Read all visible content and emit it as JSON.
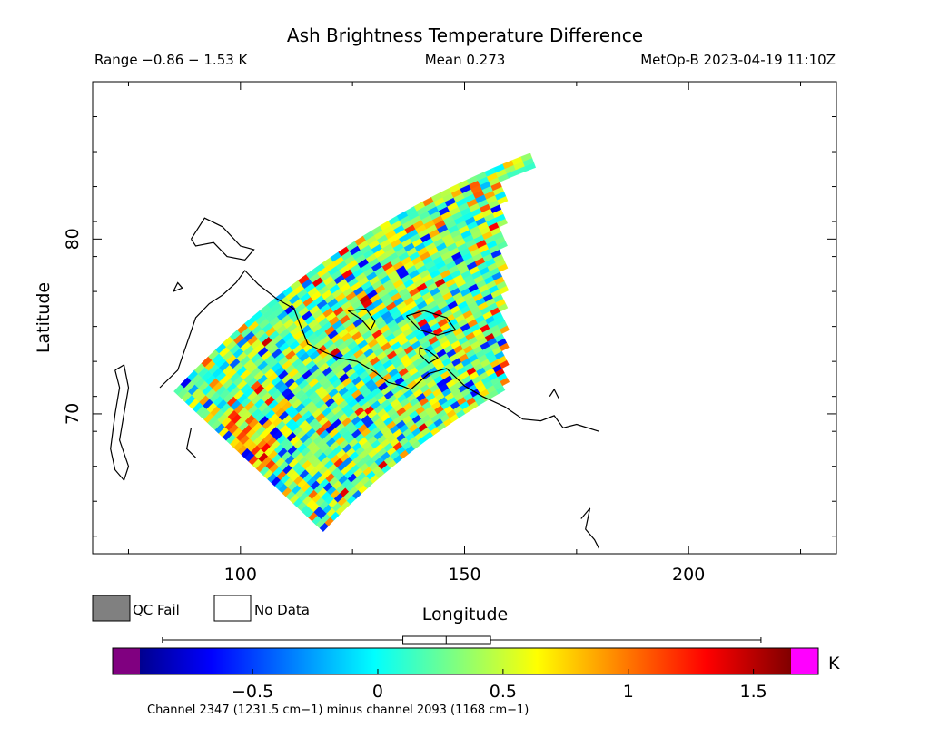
{
  "chart_data": {
    "type": "heatmap",
    "title": "Ash Brightness Temperature Difference",
    "subtitle_left": "Range −0.86 − 1.53 K",
    "subtitle_center": "Mean 0.273",
    "subtitle_right": "MetOp-B 2023-04-19 11:10Z",
    "range": [
      -0.86,
      1.53
    ],
    "mean": 0.273,
    "xlabel": "Longitude",
    "ylabel": "Latitude",
    "xlim": [
      67,
      233
    ],
    "ylim": [
      62,
      89
    ],
    "x_ticks": [
      100,
      150,
      200
    ],
    "x_tick_labels": [
      "100",
      "150",
      "200"
    ],
    "y_ticks": [
      70,
      80
    ],
    "y_tick_labels": [
      "70",
      "80"
    ],
    "swath": {
      "outer_radius_lat": 85.5,
      "inner_radius_lat": 60.5,
      "left_edge_lon": 78,
      "right_edge_lon": 160,
      "right_top_lon": 171
    },
    "legend": {
      "qc_fail_label": "QC Fail",
      "no_data_label": "No Data",
      "qc_fail_color": "#808080",
      "no_data_color": "#ffffff"
    },
    "colorbar": {
      "min": -0.95,
      "max": 1.65,
      "ticks": [
        -0.5,
        0,
        0.5,
        1,
        1.5
      ],
      "tick_labels": [
        "−0.5",
        "0",
        "0.5",
        "1",
        "1.5"
      ],
      "unit": "K",
      "under_color": "#800080",
      "over_color": "#ff00ff",
      "box_range": [
        0.1,
        0.45
      ],
      "box_median": 0.273,
      "whisker_range": [
        -0.86,
        1.53
      ],
      "caption": "Channel 2347 (1231.5 cm−1) minus channel 2093 (1168 cm−1)"
    }
  }
}
